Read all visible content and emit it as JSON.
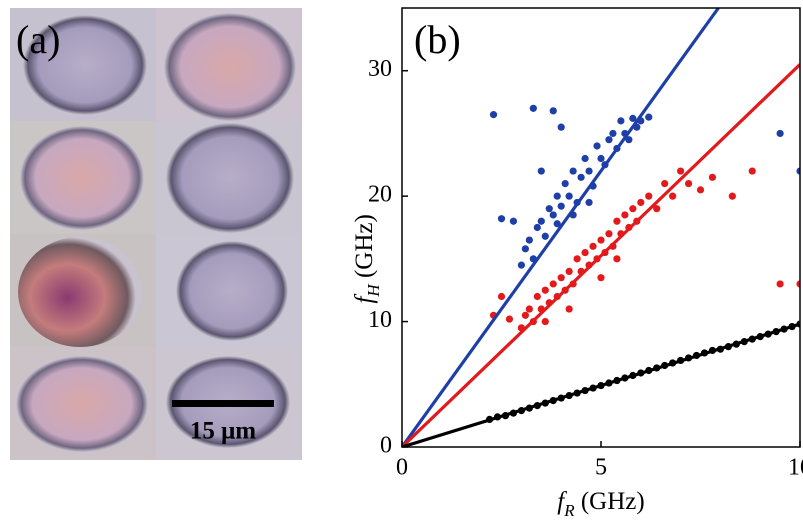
{
  "panel_a": {
    "label": "(a)",
    "scale_bar": "15 μm"
  },
  "chart_data": {
    "type": "scatter",
    "panel_label": "(b)",
    "xlabel": [
      "f",
      "R",
      " (GHz)"
    ],
    "ylabel": [
      "f",
      "H",
      " (GHz)"
    ],
    "xlim": [
      0,
      10
    ],
    "ylim": [
      0,
      35
    ],
    "xticks": [
      0,
      5,
      10
    ],
    "yticks": [
      0,
      10,
      20,
      30
    ],
    "series": [
      {
        "kind": "points",
        "color": "#1f3fa8",
        "x": [
          3.0,
          3.1,
          3.2,
          3.3,
          3.4,
          3.5,
          3.6,
          3.7,
          3.8,
          3.9,
          4.0,
          4.1,
          4.2,
          4.3,
          4.4,
          4.5,
          4.6,
          4.7,
          4.8,
          4.9,
          5.0,
          5.1,
          5.2,
          5.3,
          5.4,
          5.5,
          5.6,
          5.7,
          5.8,
          5.9,
          6.0,
          6.2,
          3.5,
          4.0,
          2.3,
          3.3,
          3.8,
          2.5,
          2.8,
          9.5,
          10,
          3.9,
          4.3,
          4.7
        ],
        "values": [
          14.5,
          15.8,
          16.5,
          15,
          17.5,
          18,
          16.8,
          19,
          18.5,
          20,
          19.2,
          21,
          20,
          22,
          19.5,
          21.5,
          23,
          22,
          20.8,
          24,
          23,
          22.5,
          24.5,
          25,
          23.8,
          26,
          25,
          24.5,
          26.2,
          25.5,
          26,
          26.3,
          22,
          25.5,
          26.5,
          27,
          26.8,
          18.2,
          18,
          25,
          22,
          17.8,
          18.5,
          19.5
        ]
      },
      {
        "kind": "points",
        "color": "#e3191c",
        "x": [
          3.0,
          3.1,
          3.2,
          3.3,
          3.4,
          3.5,
          3.6,
          3.7,
          3.8,
          3.9,
          4.0,
          4.1,
          4.2,
          4.3,
          4.4,
          4.5,
          4.6,
          4.7,
          4.8,
          4.9,
          5.0,
          5.1,
          5.2,
          5.3,
          5.4,
          5.5,
          5.6,
          5.7,
          5.8,
          5.9,
          6.0,
          6.2,
          6.4,
          6.6,
          6.8,
          7.0,
          7.2,
          7.5,
          7.8,
          8.3,
          8.8,
          2.3,
          2.5,
          2.7,
          9.5,
          10,
          3.6,
          4.2,
          5.0,
          5.4
        ],
        "values": [
          9.5,
          10.5,
          11,
          10,
          12,
          11,
          12.5,
          11.5,
          13,
          12,
          13.5,
          12.5,
          14,
          13,
          15,
          14,
          15.5,
          14.5,
          16,
          15,
          16.5,
          15.5,
          17,
          16,
          18,
          17,
          18.5,
          17.5,
          19,
          18,
          19.5,
          20,
          19,
          21,
          20,
          22,
          21,
          20.5,
          21.5,
          20,
          22,
          10.5,
          12,
          10.2,
          13,
          13,
          10,
          11,
          13.5,
          15
        ]
      },
      {
        "kind": "points",
        "color": "#000000",
        "x": [
          0,
          2.2,
          2.4,
          2.6,
          2.8,
          3.0,
          3.2,
          3.4,
          3.6,
          3.8,
          4.0,
          4.2,
          4.4,
          4.6,
          4.8,
          5.0,
          5.2,
          5.4,
          5.6,
          5.8,
          6.0,
          6.2,
          6.4,
          6.6,
          6.8,
          7.0,
          7.2,
          7.4,
          7.6,
          7.8,
          8.0,
          8.2,
          8.4,
          8.6,
          8.8,
          9.0,
          9.2,
          9.4,
          9.6,
          9.8,
          10.0
        ],
        "values": [
          0,
          2.2,
          2.4,
          2.5,
          2.7,
          2.9,
          3.1,
          3.3,
          3.5,
          3.7,
          3.9,
          4.1,
          4.3,
          4.5,
          4.7,
          4.9,
          5.1,
          5.3,
          5.5,
          5.7,
          5.9,
          6.1,
          6.3,
          6.5,
          6.7,
          6.9,
          7.1,
          7.3,
          7.5,
          7.7,
          7.8,
          8.0,
          8.2,
          8.4,
          8.6,
          8.8,
          9.0,
          9.2,
          9.4,
          9.6,
          9.8
        ]
      },
      {
        "kind": "line",
        "color": "#1f3fa8",
        "x": [
          0,
          7.95
        ],
        "values": [
          0,
          35
        ]
      },
      {
        "kind": "line",
        "color": "#e3191c",
        "x": [
          0,
          10
        ],
        "values": [
          0,
          30.5
        ]
      },
      {
        "kind": "line",
        "color": "#000000",
        "x": [
          0,
          10
        ],
        "values": [
          0,
          9.8
        ]
      }
    ]
  }
}
